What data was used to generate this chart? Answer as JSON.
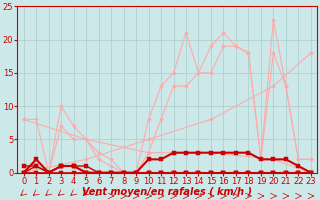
{
  "background_color": "#cce8e8",
  "grid_color": "#aacccc",
  "xlabel": "Vent moyen/en rafales ( km/h )",
  "xlabel_color": "#cc0000",
  "xlim": [
    -0.5,
    23.5
  ],
  "ylim": [
    0,
    25
  ],
  "yticks": [
    0,
    5,
    10,
    15,
    20,
    25
  ],
  "xticks": [
    0,
    1,
    2,
    3,
    4,
    5,
    6,
    7,
    8,
    9,
    10,
    11,
    12,
    13,
    14,
    15,
    16,
    17,
    18,
    19,
    20,
    21,
    22,
    23
  ],
  "series": [
    {
      "x": [
        0,
        1,
        2,
        3,
        4,
        5,
        6,
        7,
        8,
        9,
        10,
        11,
        12,
        13,
        14,
        15,
        16,
        17,
        18,
        19,
        20,
        21,
        22,
        23
      ],
      "y": [
        8,
        8,
        0,
        7,
        5,
        5,
        3,
        2,
        0,
        0,
        8,
        13,
        15,
        21,
        15,
        19,
        21,
        19,
        18,
        2,
        23,
        13,
        2,
        2
      ],
      "color": "#ffaaaa",
      "marker": "D",
      "markersize": 2.0,
      "linewidth": 0.8
    },
    {
      "x": [
        0,
        1,
        2,
        3,
        4,
        5,
        6,
        7,
        8,
        9,
        10,
        11,
        12,
        13,
        14,
        15,
        16,
        17,
        18,
        19,
        20,
        21,
        22,
        23
      ],
      "y": [
        0,
        0,
        0,
        10,
        7,
        5,
        2,
        1,
        0,
        0,
        3,
        8,
        13,
        13,
        15,
        15,
        19,
        19,
        18,
        2,
        18,
        13,
        2,
        2
      ],
      "color": "#ffaaaa",
      "marker": "D",
      "markersize": 2.0,
      "linewidth": 0.8
    },
    {
      "x": [
        0,
        5,
        10,
        15,
        20,
        23
      ],
      "y": [
        0,
        2,
        5,
        8,
        13,
        18
      ],
      "color": "#ffaaaa",
      "marker": "D",
      "markersize": 2.0,
      "linewidth": 0.8
    },
    {
      "x": [
        0,
        5,
        10,
        15,
        20,
        23
      ],
      "y": [
        8,
        5,
        3,
        3,
        2,
        0
      ],
      "color": "#ffaaaa",
      "marker": "D",
      "markersize": 2.0,
      "linewidth": 0.8
    },
    {
      "x": [
        0,
        1,
        2,
        3,
        4,
        5,
        6,
        7,
        8,
        9,
        10,
        11,
        12,
        13,
        14,
        15,
        16,
        17,
        18,
        19,
        20,
        21,
        22,
        23
      ],
      "y": [
        0,
        2,
        0,
        1,
        1,
        0,
        0,
        0,
        0,
        0,
        2,
        2,
        3,
        3,
        3,
        3,
        3,
        3,
        3,
        2,
        2,
        2,
        1,
        0
      ],
      "color": "#cc0000",
      "marker": "s",
      "markersize": 2.5,
      "linewidth": 1.5
    },
    {
      "x": [
        0,
        1,
        2,
        3,
        4,
        5,
        6,
        7,
        8,
        9,
        10,
        11,
        12,
        13,
        14,
        15,
        16,
        17,
        18,
        19,
        20,
        21,
        22,
        23
      ],
      "y": [
        0,
        0,
        0,
        0,
        0,
        0,
        0,
        0,
        0,
        0,
        0,
        0,
        0,
        0,
        0,
        0,
        0,
        0,
        0,
        0,
        0,
        0,
        0,
        0
      ],
      "color": "#cc0000",
      "marker": "s",
      "markersize": 2.5,
      "linewidth": 1.2
    },
    {
      "x": [
        0,
        1,
        2,
        3,
        4,
        5,
        6,
        7,
        8,
        9,
        10,
        11,
        12,
        13,
        14,
        15,
        16,
        17,
        18,
        19,
        20,
        21,
        22,
        23
      ],
      "y": [
        0,
        1,
        0,
        1,
        1,
        1,
        0,
        0,
        0,
        0,
        0,
        0,
        0,
        0,
        0,
        0,
        0,
        0,
        0,
        0,
        0,
        0,
        0,
        0
      ],
      "color": "#cc0000",
      "marker": "s",
      "markersize": 2.5,
      "linewidth": 1.0
    },
    {
      "x": [
        0,
        1,
        2,
        3,
        4,
        5,
        6,
        7,
        8,
        9,
        10,
        11,
        12,
        13,
        14,
        15,
        16,
        17,
        18,
        19,
        20,
        21,
        22,
        23
      ],
      "y": [
        1,
        1,
        0,
        1,
        1,
        0,
        0,
        0,
        0,
        0,
        0,
        0,
        0,
        0,
        0,
        0,
        0,
        0,
        0,
        0,
        0,
        0,
        0,
        0
      ],
      "color": "#cc0000",
      "marker": "s",
      "markersize": 2.5,
      "linewidth": 1.0
    }
  ],
  "tick_fontsize": 6,
  "label_fontsize": 7,
  "wind_arrows": {
    "calm_indices": [
      0,
      1,
      2,
      3,
      4,
      5,
      6
    ],
    "wind_indices": [
      7,
      8,
      9,
      10,
      11,
      12,
      13,
      14,
      15,
      16,
      17,
      18,
      19,
      20,
      21,
      22,
      23
    ]
  }
}
